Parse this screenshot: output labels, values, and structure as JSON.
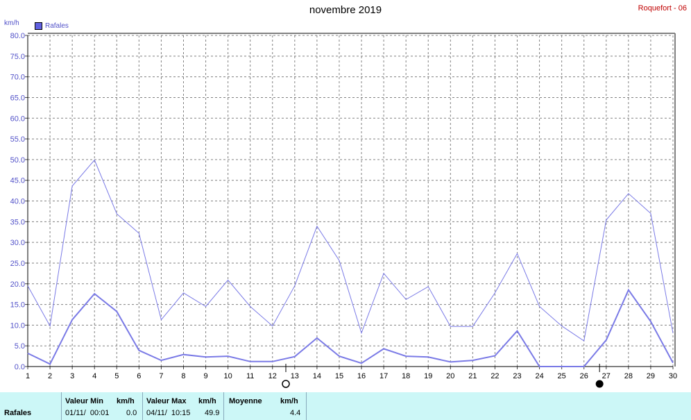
{
  "header": {
    "title": "novembre 2019",
    "station": "Roquefort - 06",
    "unit": "km/h"
  },
  "legend": {
    "label": "Rafales",
    "color": "#6060e0"
  },
  "chart_data": {
    "type": "line",
    "title": "novembre 2019",
    "ylabel": "km/h",
    "ylim": [
      0,
      80
    ],
    "yticks": [
      "0.0",
      "5.0",
      "10.0",
      "15.0",
      "20.0",
      "25.0",
      "30.0",
      "35.0",
      "40.0",
      "45.0",
      "50.0",
      "55.0",
      "60.0",
      "65.0",
      "70.0",
      "75.0",
      "80.0"
    ],
    "x": [
      1,
      2,
      3,
      4,
      5,
      6,
      7,
      8,
      9,
      10,
      11,
      12,
      13,
      14,
      15,
      16,
      17,
      18,
      19,
      20,
      21,
      22,
      23,
      24,
      25,
      26,
      27,
      28,
      29,
      30
    ],
    "grid": true,
    "series": [
      {
        "values": [
          19.5,
          9.8,
          43.6,
          49.9,
          36.9,
          32.2,
          11.3,
          17.8,
          14.5,
          20.9,
          14.5,
          9.8,
          19.5,
          33.9,
          25.6,
          8.1,
          22.5,
          16.2,
          19.3,
          9.7,
          9.7,
          17.8,
          27.3,
          14.5,
          9.8,
          6.2,
          35.4,
          41.8,
          37.0,
          8.1
        ],
        "color": "#7a7ae6",
        "width": 1
      },
      {
        "values": [
          3.2,
          0.6,
          11.3,
          17.6,
          13.3,
          3.9,
          1.5,
          2.9,
          2.3,
          2.5,
          1.2,
          1.2,
          2.4,
          6.9,
          2.5,
          0.8,
          4.3,
          2.5,
          2.3,
          1.1,
          1.5,
          2.6,
          8.6,
          0.0,
          0.0,
          0.0,
          6.4,
          18.5,
          10.9,
          0.9
        ],
        "color": "#7a7ae6",
        "width": 2
      }
    ],
    "moon_markers": [
      {
        "x": 12.6,
        "phase": "new",
        "glyph": "○"
      },
      {
        "x": 26.7,
        "phase": "full",
        "glyph": "●"
      }
    ]
  },
  "stats": {
    "row_label": "Rafales",
    "min_header": "Valeur Min",
    "min_unit": "km/h",
    "min_date": "01/11/  00:01",
    "min_value": "0.0",
    "max_header": "Valeur Max",
    "max_unit": "km/h",
    "max_date": "04/11/  10:15",
    "max_value": "49.9",
    "avg_header": "Moyenne",
    "avg_unit": "km/h",
    "avg_value": "4.4"
  }
}
